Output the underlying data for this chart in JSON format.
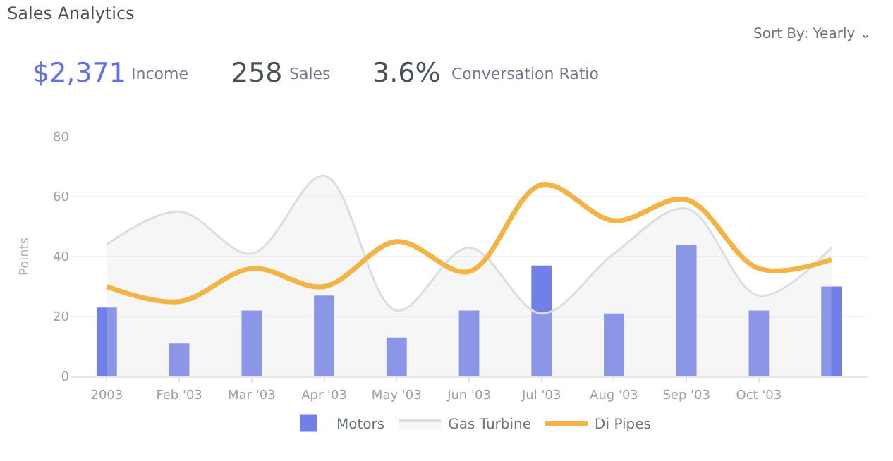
{
  "chart_data": {
    "type": "bar",
    "title": "Sales Analytics",
    "categories": [
      "2003",
      "Feb '03",
      "Mar '03",
      "Apr '03",
      "May '03",
      "Jun '03",
      "Jul '03",
      "Aug '03",
      "Sep '03",
      "Oct '03",
      null
    ],
    "series": [
      {
        "name": "Motors",
        "color": "#7080e8",
        "values": [
          23,
          11,
          22,
          27,
          13,
          22,
          37,
          21,
          44,
          22,
          30
        ]
      },
      {
        "name": "Gas Turbine",
        "color": "#dcdde0",
        "type": "area",
        "values": [
          44,
          55,
          41,
          67,
          22,
          43,
          21,
          41,
          56,
          27,
          43
        ]
      },
      {
        "name": "Di Pipes",
        "color": "#f2b445",
        "type": "line",
        "values": [
          30,
          25,
          36,
          30,
          45,
          35,
          64,
          52,
          59,
          36,
          39
        ]
      }
    ],
    "ylabel": "Points",
    "ylim": [
      0,
      80
    ],
    "yticks": [
      0,
      20,
      40,
      60,
      80
    ],
    "grid": "y",
    "legend": "bottom",
    "marker": "none",
    "annotations": [
      "Sort By: Yearly ⌄",
      "$2,371",
      "Income",
      "258",
      "Sales",
      "3.6%",
      "Conversation Ratio"
    ]
  }
}
